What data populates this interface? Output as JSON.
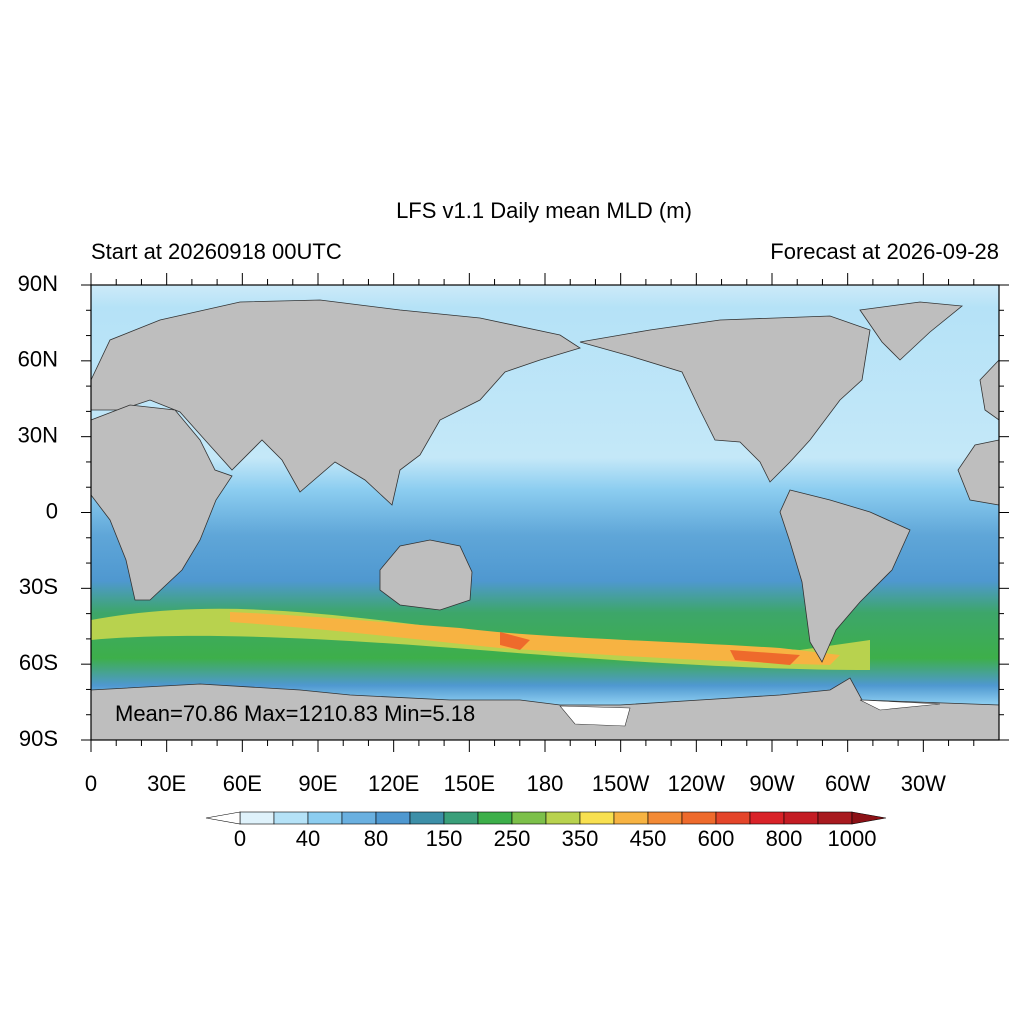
{
  "title": "LFS v1.1 Daily mean MLD (m)",
  "left_string": "Start at 20260918 00UTC",
  "right_string": "Forecast at 2026-09-28",
  "lat_labels": [
    "90N",
    "60N",
    "30N",
    "0",
    "30S",
    "60S",
    "90S"
  ],
  "lon_labels": [
    "0",
    "30E",
    "60E",
    "90E",
    "120E",
    "150E",
    "180",
    "150W",
    "120W",
    "90W",
    "60W",
    "30W"
  ],
  "annotation": "Mean=70.86  Max=1210.83  Min=5.18",
  "colorbar": {
    "labels": [
      "0",
      "40",
      "80",
      "150",
      "250",
      "350",
      "450",
      "600",
      "800",
      "1000"
    ],
    "colors": [
      "#dff2fb",
      "#b5e2f7",
      "#8ccdf0",
      "#6ab0e0",
      "#4f98d0",
      "#3d8fa8",
      "#3a9f7a",
      "#3daf4a",
      "#7cc04a",
      "#b8d24e",
      "#f8e050",
      "#f7b342",
      "#f38a35",
      "#ee6a2c",
      "#e4452a",
      "#d92228",
      "#c41c24",
      "#a81a1f"
    ],
    "under_color": "#ffffff",
    "over_color": "#8b1116"
  }
}
